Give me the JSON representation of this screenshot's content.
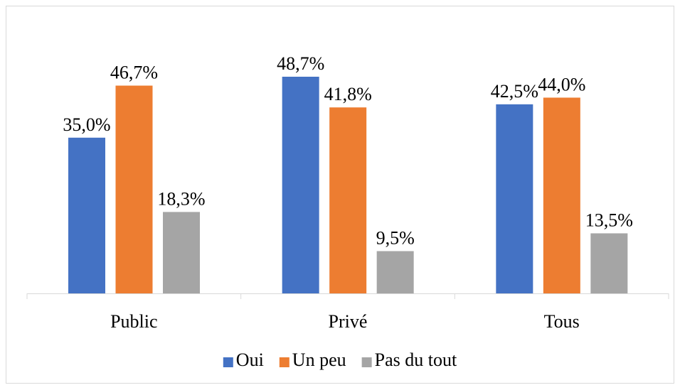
{
  "chart_data": {
    "type": "bar",
    "categories": [
      "Public",
      "Privé",
      "Tous"
    ],
    "series": [
      {
        "name": "Oui",
        "color": "#4472c4",
        "values": [
          35.0,
          48.7,
          42.5
        ],
        "value_labels": [
          "35,0%",
          "48,7%",
          "42,5%"
        ]
      },
      {
        "name": "Un peu",
        "color": "#ed7d31",
        "values": [
          46.7,
          41.8,
          44.0
        ],
        "value_labels": [
          "46,7%",
          "41,8%",
          "44,0%"
        ]
      },
      {
        "name": "Pas du tout",
        "color": "#a5a5a5",
        "values": [
          18.3,
          9.5,
          13.5
        ],
        "value_labels": [
          "18,3%",
          "9,5%",
          "13,5%"
        ]
      }
    ],
    "legend": "bottom"
  }
}
